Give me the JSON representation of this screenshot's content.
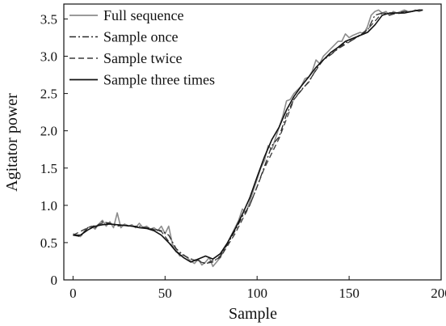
{
  "chart_data": {
    "type": "line",
    "title": "",
    "xlabel": "Sample",
    "ylabel": "Agitator power",
    "xlim": [
      -5,
      200
    ],
    "ylim": [
      0,
      3.7
    ],
    "xticks": [
      0,
      50,
      100,
      150,
      200
    ],
    "yticks": [
      0,
      0.5,
      1.0,
      1.5,
      2.0,
      2.5,
      3.0,
      3.5
    ],
    "xtick_labels": [
      "0",
      "50",
      "100",
      "150",
      "200"
    ],
    "ytick_labels": [
      "0",
      "0.5",
      "1.0",
      "1.5",
      "2.0",
      "2.5",
      "3.0",
      "3.5"
    ],
    "grid": false,
    "legend_position": "top-left",
    "series": [
      {
        "name": "Full sequence",
        "color": "#8c8c8c",
        "style": "solid",
        "x": [
          0,
          2,
          4,
          6,
          8,
          10,
          12,
          14,
          16,
          18,
          20,
          22,
          24,
          26,
          28,
          30,
          32,
          34,
          36,
          38,
          40,
          42,
          44,
          46,
          48,
          50,
          52,
          54,
          56,
          58,
          60,
          62,
          64,
          66,
          68,
          70,
          72,
          74,
          76,
          78,
          80,
          82,
          84,
          86,
          88,
          90,
          92,
          94,
          96,
          98,
          100,
          102,
          104,
          106,
          108,
          110,
          112,
          114,
          116,
          118,
          120,
          122,
          124,
          126,
          128,
          130,
          132,
          134,
          136,
          138,
          140,
          142,
          144,
          146,
          148,
          150,
          152,
          154,
          156,
          158,
          160,
          162,
          164,
          166,
          168,
          170,
          172,
          174,
          176,
          178,
          180,
          182,
          184,
          186,
          188,
          190
        ],
        "y": [
          0.62,
          0.6,
          0.58,
          0.65,
          0.7,
          0.72,
          0.68,
          0.75,
          0.8,
          0.72,
          0.78,
          0.7,
          0.9,
          0.7,
          0.75,
          0.72,
          0.74,
          0.7,
          0.76,
          0.7,
          0.72,
          0.68,
          0.7,
          0.66,
          0.72,
          0.62,
          0.72,
          0.48,
          0.4,
          0.32,
          0.34,
          0.3,
          0.25,
          0.22,
          0.28,
          0.2,
          0.24,
          0.3,
          0.18,
          0.24,
          0.3,
          0.4,
          0.5,
          0.6,
          0.7,
          0.8,
          0.95,
          0.9,
          1.05,
          1.2,
          1.35,
          1.5,
          1.6,
          1.8,
          1.75,
          1.9,
          2.05,
          2.2,
          2.4,
          2.42,
          2.5,
          2.55,
          2.6,
          2.7,
          2.72,
          2.8,
          2.95,
          2.9,
          3.0,
          3.05,
          3.1,
          3.15,
          3.2,
          3.2,
          3.3,
          3.25,
          3.28,
          3.3,
          3.32,
          3.3,
          3.4,
          3.55,
          3.6,
          3.62,
          3.58,
          3.6,
          3.55,
          3.6,
          3.58,
          3.6,
          3.62,
          3.6,
          3.6,
          3.62,
          3.6,
          3.62
        ]
      },
      {
        "name": "Sample once",
        "color": "#2a2a2a",
        "style": "dashdot",
        "x": [
          0,
          4,
          8,
          12,
          16,
          20,
          24,
          28,
          32,
          36,
          40,
          44,
          48,
          52,
          56,
          60,
          64,
          68,
          72,
          76,
          80,
          84,
          88,
          92,
          96,
          100,
          104,
          108,
          112,
          116,
          120,
          124,
          128,
          132,
          136,
          140,
          144,
          148,
          152,
          156,
          160,
          164,
          168,
          172,
          176,
          180,
          184,
          188,
          190
        ],
        "y": [
          0.6,
          0.58,
          0.7,
          0.7,
          0.78,
          0.76,
          0.72,
          0.74,
          0.72,
          0.72,
          0.7,
          0.68,
          0.66,
          0.6,
          0.42,
          0.33,
          0.28,
          0.26,
          0.22,
          0.24,
          0.32,
          0.48,
          0.66,
          0.85,
          1.0,
          1.25,
          1.52,
          1.8,
          1.92,
          2.22,
          2.42,
          2.55,
          2.65,
          2.82,
          2.95,
          3.02,
          3.1,
          3.18,
          3.22,
          3.28,
          3.35,
          3.55,
          3.58,
          3.55,
          3.58,
          3.6,
          3.6,
          3.62,
          3.62
        ]
      },
      {
        "name": "Sample twice",
        "color": "#3a3a3a",
        "style": "dashed",
        "x": [
          0,
          8,
          16,
          24,
          32,
          40,
          48,
          56,
          64,
          72,
          80,
          88,
          96,
          104,
          112,
          120,
          128,
          136,
          144,
          152,
          160,
          168,
          176,
          184,
          190
        ],
        "y": [
          0.6,
          0.7,
          0.76,
          0.74,
          0.72,
          0.7,
          0.65,
          0.38,
          0.28,
          0.22,
          0.3,
          0.62,
          1.0,
          1.5,
          1.9,
          2.42,
          2.66,
          2.96,
          3.1,
          3.22,
          3.36,
          3.58,
          3.57,
          3.6,
          3.62
        ]
      },
      {
        "name": "Sample three times",
        "color": "#111111",
        "style": "solid",
        "x": [
          0,
          4,
          8,
          12,
          16,
          20,
          24,
          28,
          32,
          36,
          40,
          44,
          48,
          52,
          56,
          60,
          64,
          68,
          72,
          76,
          80,
          84,
          88,
          92,
          96,
          100,
          104,
          108,
          112,
          116,
          120,
          124,
          128,
          132,
          136,
          140,
          144,
          148,
          152,
          156,
          160,
          164,
          168,
          172,
          176,
          180,
          184,
          188,
          190
        ],
        "y": [
          0.6,
          0.6,
          0.67,
          0.72,
          0.74,
          0.75,
          0.74,
          0.73,
          0.72,
          0.7,
          0.69,
          0.66,
          0.6,
          0.5,
          0.38,
          0.3,
          0.24,
          0.28,
          0.32,
          0.28,
          0.35,
          0.5,
          0.68,
          0.88,
          1.1,
          1.38,
          1.65,
          1.88,
          2.05,
          2.28,
          2.46,
          2.6,
          2.72,
          2.85,
          2.95,
          3.05,
          3.12,
          3.2,
          3.24,
          3.28,
          3.32,
          3.42,
          3.55,
          3.58,
          3.58,
          3.58,
          3.6,
          3.62,
          3.62
        ]
      }
    ]
  }
}
